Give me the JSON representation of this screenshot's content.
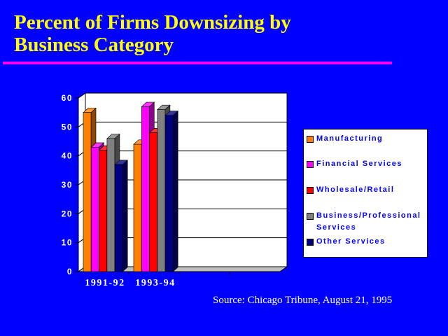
{
  "slide": {
    "title_line1": "Percent of Firms Downsizing by",
    "title_line2": "Business Category",
    "source": "Source: Chicago Tribune, August 21, 1995"
  },
  "colors": {
    "background": "#0000ff",
    "title": "#ffff00",
    "rule": "#ff00ff"
  },
  "chart_data": {
    "type": "bar",
    "categories": [
      "1991-92",
      "1993-94"
    ],
    "ylim": [
      0,
      60
    ],
    "yticks": [
      "0",
      "10",
      "20",
      "30",
      "40",
      "50",
      "60"
    ],
    "grid": true,
    "legend_position": "right",
    "series": [
      {
        "name": "Manufacturing",
        "color": "#ff8000",
        "values": [
          55,
          44
        ]
      },
      {
        "name": "Financial Services",
        "color": "#ff00ff",
        "values": [
          43,
          57
        ]
      },
      {
        "name": "Wholesale/Retail",
        "color": "#ff0000",
        "values": [
          42,
          48
        ]
      },
      {
        "name": "Business/Professional Services",
        "color": "#808080",
        "values": [
          46,
          56
        ]
      },
      {
        "name": "Other Services",
        "color": "#000080",
        "values": [
          37,
          54
        ]
      }
    ]
  }
}
